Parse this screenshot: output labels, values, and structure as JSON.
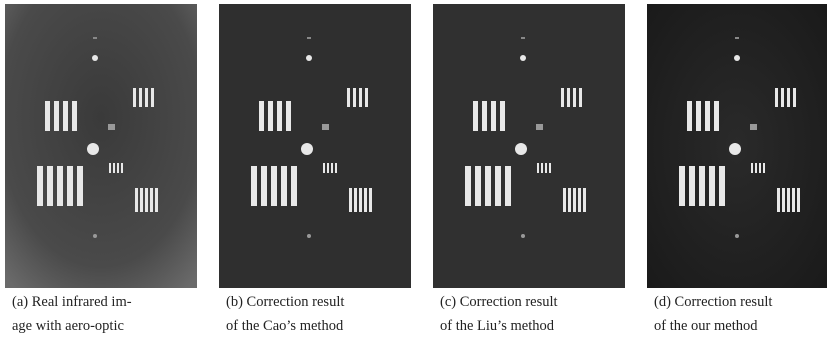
{
  "captions": [
    {
      "lines": [
        "(a) Real infrared im-",
        "age with aero-optic"
      ]
    },
    {
      "lines": [
        "(b) Correction result",
        "of the Cao’s method"
      ]
    },
    {
      "lines": [
        "(c) Correction result",
        "of the Liu’s method"
      ]
    },
    {
      "lines": [
        "(d) Correction result",
        "of the our method"
      ]
    }
  ]
}
